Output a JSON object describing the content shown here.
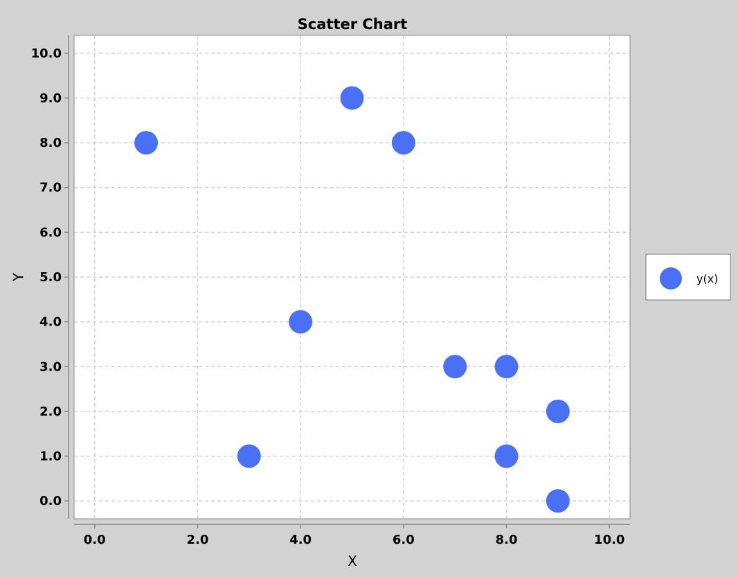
{
  "chart_data": {
    "type": "scatter",
    "title": "Scatter Chart",
    "xlabel": "X",
    "ylabel": "Y",
    "xlim": [
      -0.4,
      10.4
    ],
    "ylim": [
      -0.4,
      10.4
    ],
    "x_ticks": [
      0.0,
      2.0,
      4.0,
      6.0,
      8.0,
      10.0
    ],
    "x_tick_labels": [
      "0.0",
      "2.0",
      "4.0",
      "6.0",
      "8.0",
      "10.0"
    ],
    "y_ticks": [
      0.0,
      1.0,
      2.0,
      3.0,
      4.0,
      5.0,
      6.0,
      7.0,
      8.0,
      9.0,
      10.0
    ],
    "y_tick_labels": [
      "0.0",
      "1.0",
      "2.0",
      "3.0",
      "4.0",
      "5.0",
      "6.0",
      "7.0",
      "8.0",
      "9.0",
      "10.0"
    ],
    "grid": true,
    "legend_position": "right",
    "series": [
      {
        "name": "y(x)",
        "color": "#4a70f5",
        "points": [
          {
            "x": 1,
            "y": 8
          },
          {
            "x": 5,
            "y": 9
          },
          {
            "x": 6,
            "y": 8
          },
          {
            "x": 4,
            "y": 4
          },
          {
            "x": 7,
            "y": 3
          },
          {
            "x": 8,
            "y": 3
          },
          {
            "x": 9,
            "y": 2
          },
          {
            "x": 3,
            "y": 1
          },
          {
            "x": 8,
            "y": 1
          },
          {
            "x": 9,
            "y": 0
          }
        ]
      }
    ]
  }
}
